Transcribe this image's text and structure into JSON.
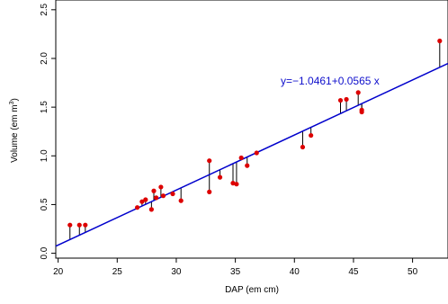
{
  "chart_data": {
    "type": "scatter",
    "title": "",
    "xlabel": "DAP (em cm)",
    "ylabel": "Volume (em m",
    "ylabel_superscript": "3",
    "ylabel_close": ")",
    "xlim": [
      19.8,
      53
    ],
    "ylim": [
      -0.05,
      2.6
    ],
    "x_ticks": [
      20,
      25,
      30,
      35,
      40,
      45,
      50
    ],
    "y_ticks": [
      0.0,
      0.5,
      1.0,
      1.5,
      2.0,
      2.5
    ],
    "x_tick_labels": [
      "20",
      "25",
      "30",
      "35",
      "40",
      "45",
      "50"
    ],
    "y_tick_labels": [
      "0.0",
      "0.5",
      "1.0",
      "1.5",
      "2.0",
      "2.5"
    ],
    "grid": false,
    "regression": {
      "intercept": -1.0461,
      "slope": 0.0565,
      "equation_text": "y=−1.0461+0.0565 x",
      "color": "#0000cc"
    },
    "point_color": "#dd0000",
    "residual_color": "#000000",
    "points": [
      {
        "x": 21.0,
        "y": 0.29
      },
      {
        "x": 21.8,
        "y": 0.29
      },
      {
        "x": 22.3,
        "y": 0.29
      },
      {
        "x": 26.7,
        "y": 0.47
      },
      {
        "x": 27.1,
        "y": 0.53
      },
      {
        "x": 27.4,
        "y": 0.55
      },
      {
        "x": 27.9,
        "y": 0.45
      },
      {
        "x": 28.1,
        "y": 0.64
      },
      {
        "x": 28.3,
        "y": 0.57
      },
      {
        "x": 28.7,
        "y": 0.68
      },
      {
        "x": 28.9,
        "y": 0.59
      },
      {
        "x": 29.7,
        "y": 0.61
      },
      {
        "x": 30.4,
        "y": 0.54
      },
      {
        "x": 32.8,
        "y": 0.95
      },
      {
        "x": 32.8,
        "y": 0.63
      },
      {
        "x": 33.7,
        "y": 0.78
      },
      {
        "x": 34.8,
        "y": 0.72
      },
      {
        "x": 35.1,
        "y": 0.71
      },
      {
        "x": 35.5,
        "y": 0.98
      },
      {
        "x": 36.0,
        "y": 0.9
      },
      {
        "x": 36.8,
        "y": 1.03
      },
      {
        "x": 40.7,
        "y": 1.09
      },
      {
        "x": 41.4,
        "y": 1.21
      },
      {
        "x": 43.9,
        "y": 1.57
      },
      {
        "x": 44.4,
        "y": 1.58
      },
      {
        "x": 45.4,
        "y": 1.65
      },
      {
        "x": 45.7,
        "y": 1.45
      },
      {
        "x": 45.7,
        "y": 1.47
      },
      {
        "x": 52.3,
        "y": 2.18
      }
    ]
  }
}
